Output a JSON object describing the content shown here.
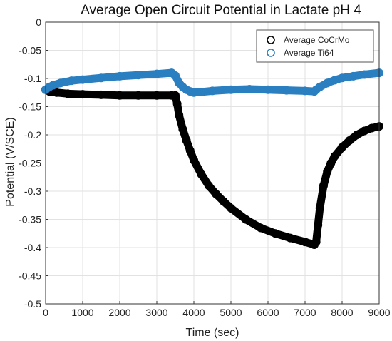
{
  "chart_data": {
    "type": "scatter",
    "title": "Average Open Circuit Potential in Lactate pH 4",
    "xlabel": "Time (sec)",
    "ylabel": "Potential (V/SCE)",
    "xlim": [
      0,
      9000
    ],
    "ylim": [
      -0.5,
      0
    ],
    "xticks": [
      0,
      1000,
      2000,
      3000,
      4000,
      5000,
      6000,
      7000,
      8000,
      9000
    ],
    "yticks": [
      0,
      -0.05,
      -0.1,
      -0.15,
      -0.2,
      -0.25,
      -0.3,
      -0.35,
      -0.4,
      -0.45,
      -0.5
    ],
    "xtick_labels": [
      "0",
      "1000",
      "2000",
      "3000",
      "4000",
      "5000",
      "6000",
      "7000",
      "8000",
      "9000"
    ],
    "ytick_labels": [
      "0",
      "-0.05",
      "-0.1",
      "-0.15",
      "-0.2",
      "-0.25",
      "-0.3",
      "-0.35",
      "-0.4",
      "-0.45",
      "-0.5"
    ],
    "grid": true,
    "legend_position": "top-right",
    "series": [
      {
        "name": "Average CoCrMo",
        "color": "#000000",
        "x": [
          0,
          100,
          300,
          600,
          1000,
          1500,
          2000,
          2500,
          3000,
          3400,
          3500,
          3550,
          3600,
          3700,
          3800,
          3900,
          4000,
          4200,
          4400,
          4600,
          4800,
          5000,
          5400,
          5800,
          6200,
          6600,
          7000,
          7250,
          7300,
          7350,
          7400,
          7500,
          7600,
          7700,
          7800,
          8000,
          8200,
          8400,
          8600,
          8800,
          9000
        ],
        "y": [
          -0.12,
          -0.123,
          -0.125,
          -0.127,
          -0.128,
          -0.129,
          -0.13,
          -0.13,
          -0.13,
          -0.13,
          -0.13,
          -0.145,
          -0.165,
          -0.19,
          -0.21,
          -0.228,
          -0.245,
          -0.27,
          -0.29,
          -0.305,
          -0.318,
          -0.33,
          -0.35,
          -0.365,
          -0.375,
          -0.383,
          -0.39,
          -0.395,
          -0.39,
          -0.36,
          -0.33,
          -0.29,
          -0.265,
          -0.25,
          -0.238,
          -0.222,
          -0.21,
          -0.2,
          -0.193,
          -0.188,
          -0.185
        ]
      },
      {
        "name": "Average Ti64",
        "color": "#2a7fc1",
        "x": [
          0,
          100,
          200,
          400,
          700,
          1000,
          1500,
          2000,
          2500,
          3000,
          3400,
          3500,
          3600,
          3700,
          3800,
          3900,
          4000,
          4200,
          4500,
          5000,
          5500,
          6000,
          6500,
          7000,
          7250,
          7300,
          7400,
          7600,
          7800,
          8000,
          8300,
          8600,
          9000
        ],
        "y": [
          -0.12,
          -0.115,
          -0.112,
          -0.108,
          -0.104,
          -0.102,
          -0.099,
          -0.096,
          -0.094,
          -0.092,
          -0.09,
          -0.095,
          -0.108,
          -0.115,
          -0.12,
          -0.123,
          -0.125,
          -0.124,
          -0.122,
          -0.12,
          -0.119,
          -0.12,
          -0.121,
          -0.122,
          -0.123,
          -0.12,
          -0.115,
          -0.108,
          -0.103,
          -0.099,
          -0.096,
          -0.093,
          -0.09
        ]
      }
    ]
  }
}
